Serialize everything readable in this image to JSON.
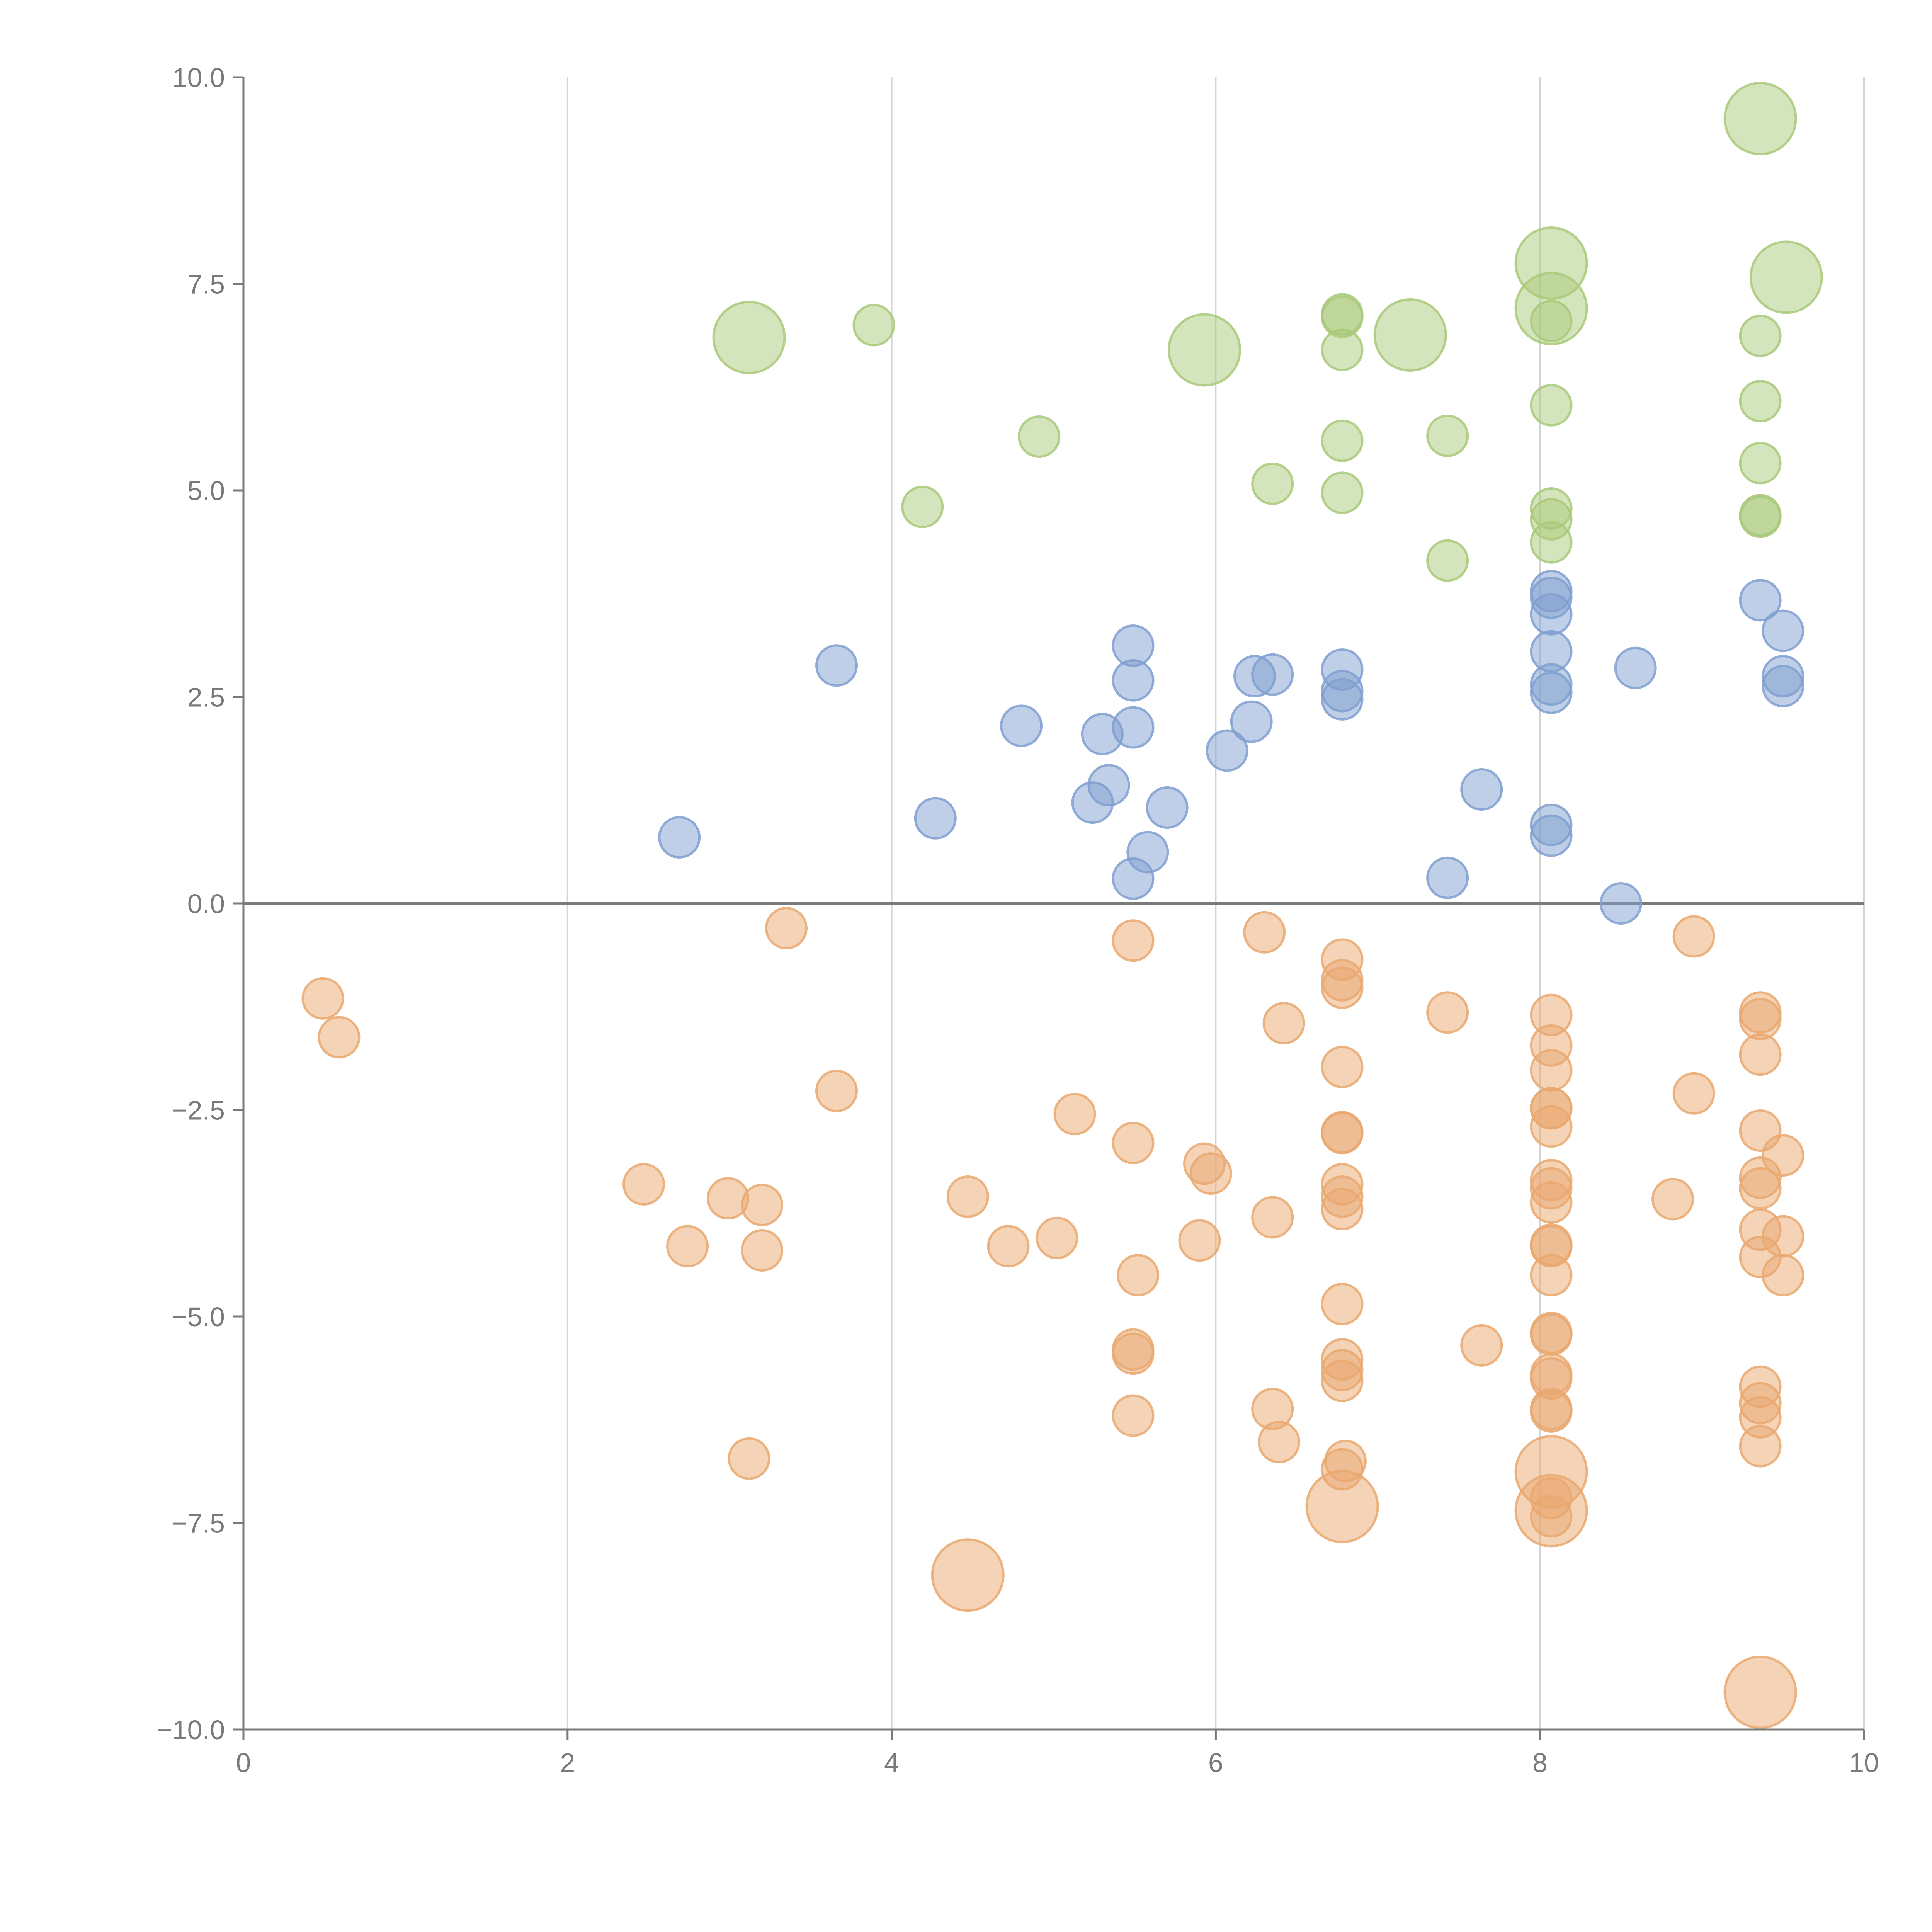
{
  "chart_data": {
    "type": "scatter",
    "title": "",
    "xlabel": "",
    "ylabel": "",
    "xlim": [
      0,
      10
    ],
    "ylim": [
      -10,
      10
    ],
    "x_ticks": [
      0,
      2,
      4,
      6,
      8,
      10
    ],
    "x_tick_labels": [
      "0",
      "2",
      "4",
      "6",
      "8",
      "10"
    ],
    "y_ticks": [
      10,
      7.5,
      5,
      2.5,
      0,
      -2.5,
      -5,
      -7.5,
      -10
    ],
    "y_tick_labels": [
      "10.0",
      "7.5",
      "5.0",
      "2.5",
      "0.0",
      "−2.5",
      "−5.0",
      "−7.5",
      "−10.0"
    ],
    "vertical_grid": true,
    "horizontal_grid": false,
    "zero_line": true,
    "series": [
      {
        "name": "green",
        "color": "#a9c97a",
        "points": [
          [
            3.12,
            6.85,
            1
          ],
          [
            3.89,
            7.0,
            0
          ],
          [
            4.19,
            4.8,
            0
          ],
          [
            4.91,
            5.65,
            0
          ],
          [
            5.93,
            6.7,
            1
          ],
          [
            6.35,
            5.08,
            0
          ],
          [
            6.78,
            7.1,
            0
          ],
          [
            6.78,
            7.13,
            0
          ],
          [
            6.78,
            6.7,
            0
          ],
          [
            6.78,
            5.6,
            0
          ],
          [
            6.78,
            4.97,
            0
          ],
          [
            7.2,
            6.88,
            1
          ],
          [
            7.43,
            5.66,
            0
          ],
          [
            7.43,
            4.15,
            0
          ],
          [
            8.07,
            7.75,
            1
          ],
          [
            8.07,
            7.2,
            1
          ],
          [
            8.07,
            7.05,
            0
          ],
          [
            8.07,
            6.03,
            0
          ],
          [
            8.07,
            4.78,
            0
          ],
          [
            8.07,
            4.65,
            0
          ],
          [
            8.07,
            4.37,
            0
          ],
          [
            9.36,
            9.5,
            1
          ],
          [
            9.52,
            7.58,
            1
          ],
          [
            9.36,
            6.87,
            0
          ],
          [
            9.36,
            6.08,
            0
          ],
          [
            9.36,
            5.33,
            0
          ],
          [
            9.36,
            4.7,
            0
          ],
          [
            9.36,
            4.68,
            0
          ]
        ]
      },
      {
        "name": "blue",
        "color": "#7f9fd0",
        "points": [
          [
            2.69,
            0.8,
            0
          ],
          [
            3.66,
            2.88,
            0
          ],
          [
            4.27,
            1.03,
            0
          ],
          [
            4.8,
            2.15,
            0
          ],
          [
            5.24,
            1.22,
            0
          ],
          [
            5.3,
            2.05,
            0
          ],
          [
            5.34,
            1.43,
            0
          ],
          [
            5.49,
            3.12,
            0
          ],
          [
            5.49,
            2.7,
            0
          ],
          [
            5.49,
            2.13,
            0
          ],
          [
            5.49,
            0.3,
            0
          ],
          [
            5.58,
            0.62,
            0
          ],
          [
            5.7,
            1.16,
            0
          ],
          [
            6.07,
            1.85,
            0
          ],
          [
            6.22,
            2.2,
            0
          ],
          [
            6.24,
            2.75,
            0
          ],
          [
            6.35,
            2.77,
            0
          ],
          [
            6.78,
            2.83,
            0
          ],
          [
            6.78,
            2.57,
            0
          ],
          [
            6.78,
            2.47,
            0
          ],
          [
            7.43,
            0.31,
            0
          ],
          [
            7.64,
            1.38,
            0
          ],
          [
            8.07,
            3.78,
            0
          ],
          [
            8.07,
            3.7,
            0
          ],
          [
            8.07,
            3.5,
            0
          ],
          [
            8.07,
            3.05,
            0
          ],
          [
            8.07,
            2.65,
            0
          ],
          [
            8.07,
            2.55,
            0
          ],
          [
            8.07,
            0.95,
            0
          ],
          [
            8.07,
            0.82,
            0
          ],
          [
            8.5,
            0.0,
            0
          ],
          [
            8.59,
            2.85,
            0
          ],
          [
            9.36,
            3.67,
            0
          ],
          [
            9.5,
            3.3,
            0
          ],
          [
            9.5,
            2.75,
            0
          ],
          [
            9.5,
            2.63,
            0
          ]
        ]
      },
      {
        "name": "orange",
        "color": "#e9a870",
        "points": [
          [
            0.49,
            -1.15,
            0
          ],
          [
            0.59,
            -1.62,
            0
          ],
          [
            2.47,
            -3.4,
            0
          ],
          [
            2.74,
            -4.15,
            0
          ],
          [
            2.99,
            -3.57,
            0
          ],
          [
            3.2,
            -3.65,
            0
          ],
          [
            3.2,
            -4.2,
            0
          ],
          [
            3.12,
            -6.72,
            0
          ],
          [
            3.35,
            -0.3,
            0
          ],
          [
            3.66,
            -2.27,
            0
          ],
          [
            4.47,
            -3.55,
            0
          ],
          [
            4.47,
            -8.13,
            1
          ],
          [
            4.72,
            -4.15,
            0
          ],
          [
            5.02,
            -4.05,
            0
          ],
          [
            5.13,
            -2.55,
            0
          ],
          [
            5.49,
            -0.45,
            0
          ],
          [
            5.49,
            -2.9,
            0
          ],
          [
            5.52,
            -4.5,
            0
          ],
          [
            5.49,
            -5.4,
            0
          ],
          [
            5.49,
            -5.45,
            0
          ],
          [
            5.49,
            -6.2,
            0
          ],
          [
            5.9,
            -4.08,
            0
          ],
          [
            5.93,
            -3.15,
            0
          ],
          [
            5.97,
            -3.27,
            0
          ],
          [
            6.3,
            -0.35,
            0
          ],
          [
            6.35,
            -3.8,
            0
          ],
          [
            6.35,
            -6.12,
            0
          ],
          [
            6.39,
            -6.52,
            0
          ],
          [
            6.42,
            -1.45,
            0
          ],
          [
            6.78,
            -0.68,
            0
          ],
          [
            6.78,
            -0.93,
            0
          ],
          [
            6.78,
            -1.02,
            0
          ],
          [
            6.78,
            -1.98,
            0
          ],
          [
            6.78,
            -2.77,
            0
          ],
          [
            6.78,
            -2.78,
            0
          ],
          [
            6.78,
            -3.4,
            0
          ],
          [
            6.78,
            -3.55,
            0
          ],
          [
            6.78,
            -3.7,
            0
          ],
          [
            6.78,
            -4.85,
            0
          ],
          [
            6.78,
            -5.52,
            0
          ],
          [
            6.78,
            -5.65,
            0
          ],
          [
            6.78,
            -5.78,
            0
          ],
          [
            6.8,
            -6.75,
            0
          ],
          [
            6.78,
            -6.85,
            0
          ],
          [
            6.78,
            -7.3,
            1
          ],
          [
            7.43,
            -1.32,
            0
          ],
          [
            7.64,
            -5.35,
            0
          ],
          [
            8.07,
            -1.35,
            0
          ],
          [
            8.07,
            -1.72,
            0
          ],
          [
            8.07,
            -2.02,
            0
          ],
          [
            8.07,
            -2.48,
            0
          ],
          [
            8.07,
            -2.48,
            0
          ],
          [
            8.07,
            -2.7,
            0
          ],
          [
            8.07,
            -3.35,
            0
          ],
          [
            8.07,
            -3.45,
            0
          ],
          [
            8.07,
            -3.62,
            0
          ],
          [
            8.07,
            -4.13,
            0
          ],
          [
            8.07,
            -4.15,
            0
          ],
          [
            8.07,
            -4.5,
            0
          ],
          [
            8.07,
            -5.2,
            0
          ],
          [
            8.07,
            -5.22,
            0
          ],
          [
            8.07,
            -5.7,
            0
          ],
          [
            8.07,
            -5.75,
            0
          ],
          [
            8.07,
            -6.12,
            0
          ],
          [
            8.07,
            -6.15,
            0
          ],
          [
            8.07,
            -6.88,
            1
          ],
          [
            8.07,
            -7.2,
            0
          ],
          [
            8.07,
            -7.35,
            1
          ],
          [
            8.07,
            -7.42,
            0
          ],
          [
            8.82,
            -3.58,
            0
          ],
          [
            8.95,
            -0.4,
            0
          ],
          [
            8.95,
            -2.3,
            0
          ],
          [
            9.36,
            -1.32,
            0
          ],
          [
            9.36,
            -1.4,
            0
          ],
          [
            9.36,
            -1.83,
            0
          ],
          [
            9.36,
            -2.75,
            0
          ],
          [
            9.36,
            -3.32,
            0
          ],
          [
            9.36,
            -3.45,
            0
          ],
          [
            9.36,
            -3.95,
            0
          ],
          [
            9.36,
            -4.28,
            0
          ],
          [
            9.36,
            -5.85,
            0
          ],
          [
            9.36,
            -6.05,
            0
          ],
          [
            9.36,
            -6.22,
            0
          ],
          [
            9.36,
            -6.57,
            0
          ],
          [
            9.36,
            -9.55,
            1
          ],
          [
            9.5,
            -3.05,
            0
          ],
          [
            9.5,
            -4.03,
            0
          ],
          [
            9.5,
            -4.5,
            0
          ]
        ]
      }
    ]
  },
  "axis_color": "#7a7a7a",
  "grid_color": "#d4d4d4"
}
